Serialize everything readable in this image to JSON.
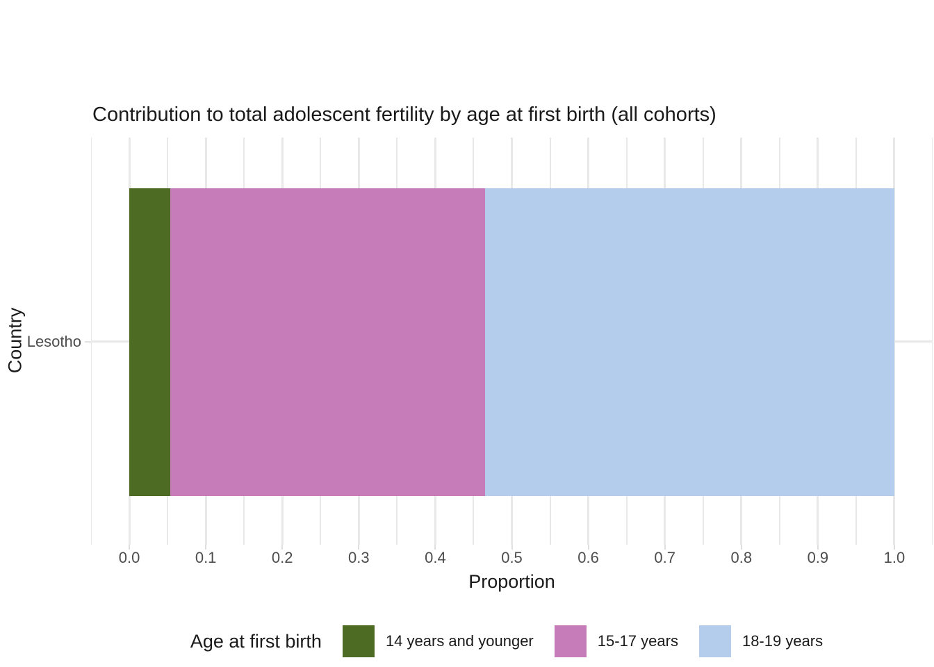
{
  "chart_data": {
    "type": "bar",
    "orientation": "horizontal",
    "stacked": true,
    "title": "Contribution to total adolescent fertility by age at first birth (all cohorts)",
    "xlabel": "Proportion",
    "ylabel": "Country",
    "categories": [
      "Lesotho"
    ],
    "series": [
      {
        "name": "14 years and younger",
        "values": [
          0.054
        ],
        "color": "#4d6b22"
      },
      {
        "name": "15-17 years",
        "values": [
          0.411
        ],
        "color": "#c77cba"
      },
      {
        "name": "18-19 years",
        "values": [
          0.535
        ],
        "color": "#b4cdec"
      }
    ],
    "legend_title": "Age at first birth",
    "legend_position": "bottom",
    "xlim": [
      0,
      1
    ],
    "x_domain": [
      -0.05,
      1.05
    ],
    "x_ticks": [
      0,
      0.1,
      0.2,
      0.3,
      0.4,
      0.5,
      0.6,
      0.7,
      0.8,
      0.9,
      1.0
    ],
    "x_tick_labels": [
      "0.0",
      "0.1",
      "0.2",
      "0.3",
      "0.4",
      "0.5",
      "0.6",
      "0.7",
      "0.8",
      "0.9",
      "1.0"
    ],
    "x_minor_breaks": [
      -0.05,
      0.05,
      0.15,
      0.25,
      0.35,
      0.45,
      0.55,
      0.65,
      0.75,
      0.85,
      0.95,
      1.05
    ],
    "grid": true,
    "colors": {
      "gridline": "#e8e8e8",
      "tick_mark": "#dedede",
      "tick_label": "#4d4d4d",
      "text": "#1a1a1a",
      "background": "#ffffff"
    }
  }
}
